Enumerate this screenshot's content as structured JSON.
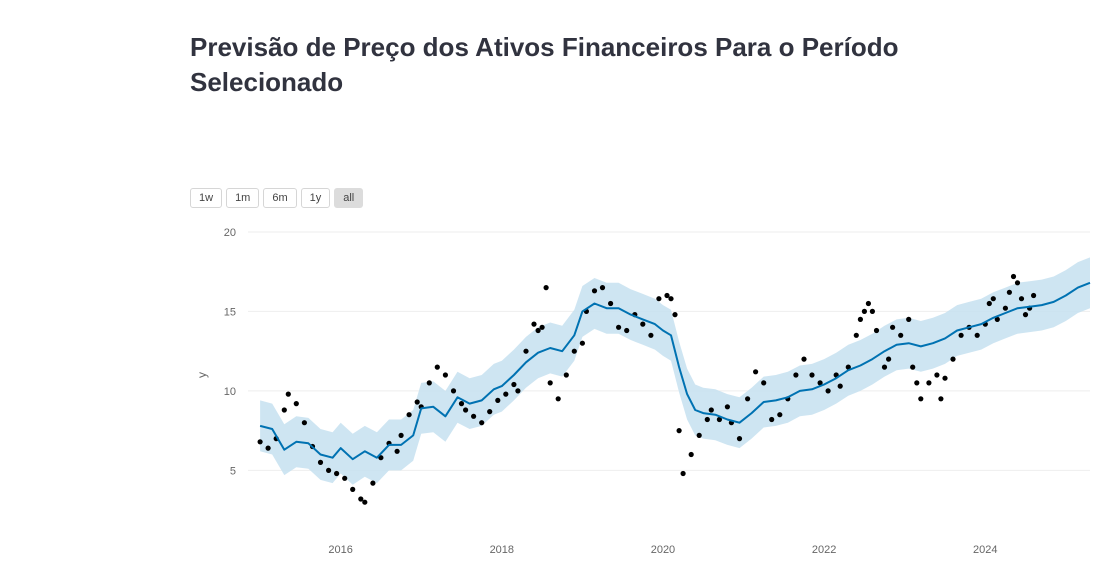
{
  "page": {
    "title": "Previsão de Preço dos Ativos Financeiros Para o Período Selecionado"
  },
  "range_selector": {
    "buttons": [
      {
        "label": "1w",
        "active": false
      },
      {
        "label": "1m",
        "active": false
      },
      {
        "label": "6m",
        "active": false
      },
      {
        "label": "1y",
        "active": false
      },
      {
        "label": "all",
        "active": true
      }
    ]
  },
  "colors": {
    "forecast_line": "#0072b2",
    "uncertainty_band": "#c6e0f0",
    "actual_points": "#000000",
    "grid": "#eeeeee"
  },
  "chart_data": {
    "type": "scatter",
    "title": "",
    "xlabel": "",
    "ylabel": "y",
    "xlim": [
      2014.85,
      2025.3
    ],
    "ylim": [
      1.5,
      20.5
    ],
    "x_ticks": [
      2016,
      2018,
      2020,
      2022,
      2024
    ],
    "x_tick_labels": [
      "2016",
      "2018",
      "2020",
      "2022",
      "2024"
    ],
    "y_ticks": [
      5,
      10,
      15,
      20
    ],
    "y_tick_labels": [
      "5",
      "10",
      "15",
      "20"
    ],
    "grid": "horizontal",
    "legend": "none",
    "series": [
      {
        "kind": "actual",
        "points": [
          [
            2015.0,
            6.8
          ],
          [
            2015.1,
            6.4
          ],
          [
            2015.2,
            7.0
          ],
          [
            2015.3,
            8.8
          ],
          [
            2015.35,
            9.8
          ],
          [
            2015.45,
            9.2
          ],
          [
            2015.55,
            8.0
          ],
          [
            2015.65,
            6.5
          ],
          [
            2015.75,
            5.5
          ],
          [
            2015.85,
            5.0
          ],
          [
            2015.95,
            4.8
          ],
          [
            2016.05,
            4.5
          ],
          [
            2016.15,
            3.8
          ],
          [
            2016.25,
            3.2
          ],
          [
            2016.3,
            3.0
          ],
          [
            2016.4,
            4.2
          ],
          [
            2016.5,
            5.8
          ],
          [
            2016.6,
            6.7
          ],
          [
            2016.7,
            6.2
          ],
          [
            2016.75,
            7.2
          ],
          [
            2016.85,
            8.5
          ],
          [
            2016.95,
            9.3
          ],
          [
            2017.0,
            9.0
          ],
          [
            2017.1,
            10.5
          ],
          [
            2017.2,
            11.5
          ],
          [
            2017.3,
            11.0
          ],
          [
            2017.4,
            10.0
          ],
          [
            2017.5,
            9.2
          ],
          [
            2017.55,
            8.8
          ],
          [
            2017.65,
            8.4
          ],
          [
            2017.75,
            8.0
          ],
          [
            2017.85,
            8.7
          ],
          [
            2017.95,
            9.4
          ],
          [
            2018.05,
            9.8
          ],
          [
            2018.15,
            10.4
          ],
          [
            2018.2,
            10.0
          ],
          [
            2018.3,
            12.5
          ],
          [
            2018.4,
            14.2
          ],
          [
            2018.45,
            13.8
          ],
          [
            2018.5,
            14.0
          ],
          [
            2018.55,
            16.5
          ],
          [
            2018.6,
            10.5
          ],
          [
            2018.7,
            9.5
          ],
          [
            2018.8,
            11.0
          ],
          [
            2018.9,
            12.5
          ],
          [
            2019.0,
            13.0
          ],
          [
            2019.05,
            15.0
          ],
          [
            2019.15,
            16.3
          ],
          [
            2019.25,
            16.5
          ],
          [
            2019.35,
            15.5
          ],
          [
            2019.45,
            14.0
          ],
          [
            2019.55,
            13.8
          ],
          [
            2019.65,
            14.8
          ],
          [
            2019.75,
            14.2
          ],
          [
            2019.85,
            13.5
          ],
          [
            2019.95,
            15.8
          ],
          [
            2020.05,
            16.0
          ],
          [
            2020.1,
            15.8
          ],
          [
            2020.15,
            14.8
          ],
          [
            2020.2,
            7.5
          ],
          [
            2020.25,
            4.8
          ],
          [
            2020.35,
            6.0
          ],
          [
            2020.45,
            7.2
          ],
          [
            2020.55,
            8.2
          ],
          [
            2020.6,
            8.8
          ],
          [
            2020.7,
            8.2
          ],
          [
            2020.8,
            9.0
          ],
          [
            2020.85,
            8.0
          ],
          [
            2020.95,
            7.0
          ],
          [
            2021.05,
            9.5
          ],
          [
            2021.15,
            11.2
          ],
          [
            2021.25,
            10.5
          ],
          [
            2021.35,
            8.2
          ],
          [
            2021.45,
            8.5
          ],
          [
            2021.55,
            9.5
          ],
          [
            2021.65,
            11.0
          ],
          [
            2021.75,
            12.0
          ],
          [
            2021.85,
            11.0
          ],
          [
            2021.95,
            10.5
          ],
          [
            2022.05,
            10.0
          ],
          [
            2022.15,
            11.0
          ],
          [
            2022.2,
            10.3
          ],
          [
            2022.3,
            11.5
          ],
          [
            2022.4,
            13.5
          ],
          [
            2022.45,
            14.5
          ],
          [
            2022.5,
            15.0
          ],
          [
            2022.55,
            15.5
          ],
          [
            2022.6,
            15.0
          ],
          [
            2022.65,
            13.8
          ],
          [
            2022.75,
            11.5
          ],
          [
            2022.8,
            12.0
          ],
          [
            2022.85,
            14.0
          ],
          [
            2022.95,
            13.5
          ],
          [
            2023.05,
            14.5
          ],
          [
            2023.1,
            11.5
          ],
          [
            2023.15,
            10.5
          ],
          [
            2023.2,
            9.5
          ],
          [
            2023.3,
            10.5
          ],
          [
            2023.4,
            11.0
          ],
          [
            2023.45,
            9.5
          ],
          [
            2023.5,
            10.8
          ],
          [
            2023.6,
            12.0
          ],
          [
            2023.7,
            13.5
          ],
          [
            2023.8,
            14.0
          ],
          [
            2023.9,
            13.5
          ],
          [
            2024.0,
            14.2
          ],
          [
            2024.05,
            15.5
          ],
          [
            2024.1,
            15.8
          ],
          [
            2024.15,
            14.5
          ],
          [
            2024.25,
            15.2
          ],
          [
            2024.3,
            16.2
          ],
          [
            2024.35,
            17.2
          ],
          [
            2024.4,
            16.8
          ],
          [
            2024.45,
            15.8
          ],
          [
            2024.5,
            14.8
          ],
          [
            2024.55,
            15.2
          ],
          [
            2024.6,
            16.0
          ]
        ]
      },
      {
        "kind": "forecast",
        "points": [
          [
            2015.0,
            7.8
          ],
          [
            2015.15,
            7.6
          ],
          [
            2015.3,
            6.3
          ],
          [
            2015.45,
            6.8
          ],
          [
            2015.6,
            6.7
          ],
          [
            2015.75,
            6.0
          ],
          [
            2015.9,
            5.8
          ],
          [
            2016.0,
            6.4
          ],
          [
            2016.15,
            5.7
          ],
          [
            2016.3,
            6.2
          ],
          [
            2016.45,
            5.8
          ],
          [
            2016.6,
            6.6
          ],
          [
            2016.75,
            6.6
          ],
          [
            2016.9,
            7.2
          ],
          [
            2017.0,
            8.9
          ],
          [
            2017.15,
            9.0
          ],
          [
            2017.3,
            8.4
          ],
          [
            2017.45,
            9.6
          ],
          [
            2017.6,
            9.2
          ],
          [
            2017.75,
            9.4
          ],
          [
            2017.9,
            10.1
          ],
          [
            2018.0,
            10.3
          ],
          [
            2018.15,
            11.0
          ],
          [
            2018.3,
            11.8
          ],
          [
            2018.45,
            12.4
          ],
          [
            2018.6,
            12.7
          ],
          [
            2018.75,
            12.5
          ],
          [
            2018.9,
            13.5
          ],
          [
            2019.0,
            15.0
          ],
          [
            2019.15,
            15.5
          ],
          [
            2019.3,
            15.2
          ],
          [
            2019.45,
            15.2
          ],
          [
            2019.6,
            14.8
          ],
          [
            2019.75,
            14.5
          ],
          [
            2019.9,
            14.2
          ],
          [
            2020.0,
            13.8
          ],
          [
            2020.1,
            13.5
          ],
          [
            2020.2,
            11.5
          ],
          [
            2020.3,
            9.8
          ],
          [
            2020.4,
            8.8
          ],
          [
            2020.5,
            8.6
          ],
          [
            2020.65,
            8.5
          ],
          [
            2020.8,
            8.2
          ],
          [
            2020.95,
            8.0
          ],
          [
            2021.1,
            8.6
          ],
          [
            2021.25,
            9.3
          ],
          [
            2021.4,
            9.4
          ],
          [
            2021.55,
            9.6
          ],
          [
            2021.7,
            10.0
          ],
          [
            2021.85,
            10.1
          ],
          [
            2022.0,
            10.4
          ],
          [
            2022.15,
            10.8
          ],
          [
            2022.3,
            11.3
          ],
          [
            2022.45,
            11.6
          ],
          [
            2022.6,
            12.0
          ],
          [
            2022.75,
            12.5
          ],
          [
            2022.9,
            12.9
          ],
          [
            2023.05,
            13.0
          ],
          [
            2023.2,
            12.8
          ],
          [
            2023.35,
            13.0
          ],
          [
            2023.5,
            13.3
          ],
          [
            2023.65,
            13.8
          ],
          [
            2023.8,
            14.0
          ],
          [
            2023.95,
            14.2
          ],
          [
            2024.1,
            14.6
          ],
          [
            2024.25,
            14.9
          ],
          [
            2024.4,
            15.2
          ],
          [
            2024.55,
            15.3
          ],
          [
            2024.7,
            15.4
          ],
          [
            2024.85,
            15.6
          ],
          [
            2025.0,
            16.0
          ],
          [
            2025.15,
            16.5
          ],
          [
            2025.3,
            16.8
          ]
        ]
      }
    ],
    "uncertainty_halfwidth": 1.6
  }
}
